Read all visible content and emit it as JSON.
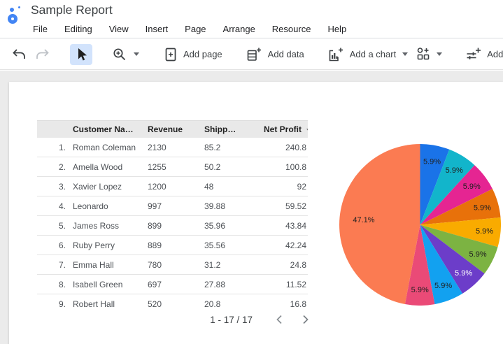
{
  "header": {
    "title": "Sample Report",
    "menu": [
      "File",
      "Editing",
      "View",
      "Insert",
      "Page",
      "Arrange",
      "Resource",
      "Help"
    ]
  },
  "toolbar": {
    "add_page_label": "Add page",
    "add_data_label": "Add data",
    "add_chart_label": "Add a chart",
    "add_control_label": "Add a control",
    "icons": [
      "undo-icon",
      "redo-icon",
      "select-tool-icon",
      "zoom-icon",
      "add-page-icon",
      "add-data-icon",
      "add-chart-icon",
      "community-visualizations-icon",
      "add-control-icon"
    ],
    "selected_tool": "select",
    "selected_tool_bg": "#D2E3FC"
  },
  "table": {
    "columns": [
      "Customer Na…",
      "Revenue",
      "Shipp…",
      "Net Profit"
    ],
    "sorted_column": "Net Profit",
    "sort_direction": "desc",
    "rows": [
      {
        "n": "1.",
        "name": "Roman Coleman",
        "revenue": "2130",
        "shipping": "85.2",
        "profit": "240.8"
      },
      {
        "n": "2.",
        "name": "Amella Wood",
        "revenue": "1255",
        "shipping": "50.2",
        "profit": "100.8"
      },
      {
        "n": "3.",
        "name": "Xavier Lopez",
        "revenue": "1200",
        "shipping": "48",
        "profit": "92"
      },
      {
        "n": "4.",
        "name": "Leonardo",
        "revenue": "997",
        "shipping": "39.88",
        "profit": "59.52"
      },
      {
        "n": "5.",
        "name": "James Ross",
        "revenue": "899",
        "shipping": "35.96",
        "profit": "43.84"
      },
      {
        "n": "6.",
        "name": "Ruby Perry",
        "revenue": "889",
        "shipping": "35.56",
        "profit": "42.24"
      },
      {
        "n": "7.",
        "name": "Emma Hall",
        "revenue": "780",
        "shipping": "31.2",
        "profit": "24.8"
      },
      {
        "n": "8.",
        "name": "Isabell Green",
        "revenue": "697",
        "shipping": "27.88",
        "profit": "11.52"
      },
      {
        "n": "9.",
        "name": "Robert Hall",
        "revenue": "520",
        "shipping": "20.8",
        "profit": "16.8"
      }
    ],
    "pagination": {
      "label": "1 - 17 / 17",
      "prev_icon": "chevron-left-icon",
      "next_icon": "chevron-right-icon"
    }
  },
  "chart_data": {
    "type": "pie",
    "title": "",
    "legend": "none",
    "labels_shown": "percent",
    "start_angle_deg": 0,
    "direction": "clockwise",
    "series": [
      {
        "label": "5.9%",
        "value": 5.9,
        "color": "#1A73E8",
        "label_color": "#212121"
      },
      {
        "label": "5.9%",
        "value": 5.9,
        "color": "#12B5CB",
        "label_color": "#212121"
      },
      {
        "label": "5.9%",
        "value": 5.9,
        "color": "#E52592",
        "label_color": "#212121"
      },
      {
        "label": "5.9%",
        "value": 5.9,
        "color": "#E8710A",
        "label_color": "#212121"
      },
      {
        "label": "5.9%",
        "value": 5.9,
        "color": "#F9AB00",
        "label_color": "#212121"
      },
      {
        "label": "5.9%",
        "value": 5.9,
        "color": "#7CB342",
        "label_color": "#212121"
      },
      {
        "label": "5.9%",
        "value": 5.9,
        "color": "#6C3DC9",
        "label_color": "#FFFFFF"
      },
      {
        "label": "5.9%",
        "value": 5.9,
        "color": "#12A1F0",
        "label_color": "#212121"
      },
      {
        "label": "5.9%",
        "value": 5.9,
        "color": "#EA4A77",
        "label_color": "#212121"
      },
      {
        "label": "47.1%",
        "value": 47.1,
        "color": "#FB7B52",
        "label_color": "#212121"
      }
    ]
  },
  "colors": {
    "canvas_bg": "#EBEBEB",
    "table_header_bg": "#E9E9E9",
    "accent_blue": "#4285F4"
  }
}
